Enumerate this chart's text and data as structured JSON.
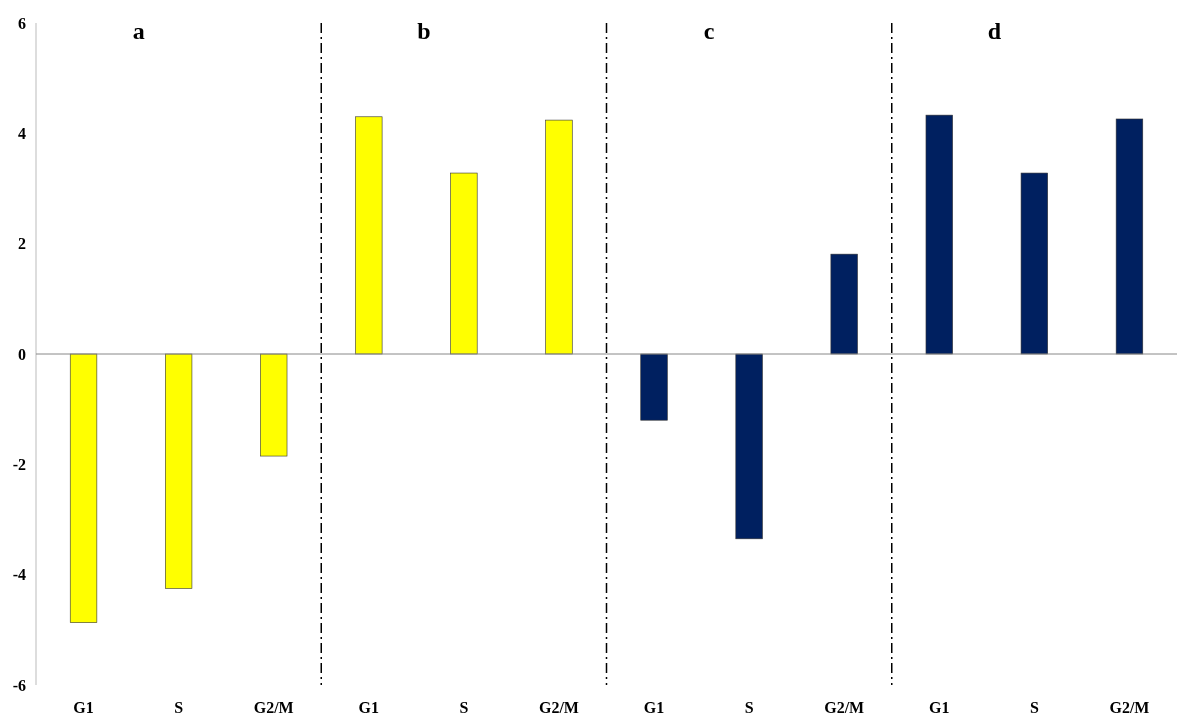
{
  "chart_data": [
    {
      "type": "bar",
      "categories": [
        "G1",
        "S",
        "G2/M"
      ],
      "values": [
        -4.87,
        -4.25,
        -1.85
      ],
      "color": "#ffff00",
      "ylim": [
        -6,
        6
      ],
      "yticks": [
        -6,
        -4,
        -2,
        0,
        2,
        4,
        6
      ],
      "annotations": [
        "a"
      ]
    },
    {
      "type": "bar",
      "categories": [
        "G1",
        "S",
        "G2/M"
      ],
      "values": [
        4.3,
        3.28,
        4.24
      ],
      "color": "#ffff00",
      "ylim": [
        -6,
        6
      ],
      "annotations": [
        "b"
      ],
      "tick_labels": "x"
    },
    {
      "type": "bar",
      "categories": [
        "G1",
        "S",
        "G2/M"
      ],
      "values": [
        -1.2,
        -3.35,
        1.81
      ],
      "color": "#002060",
      "ylim": [
        -6,
        6
      ],
      "annotations": [
        "c"
      ],
      "tick_labels": "x"
    },
    {
      "type": "bar",
      "categories": [
        "G1",
        "S",
        "G2/M"
      ],
      "values": [
        4.33,
        3.28,
        4.26
      ],
      "color": "#002060",
      "ylim": [
        -6,
        6
      ],
      "annotations": [
        "d"
      ],
      "tick_labels": "x"
    }
  ]
}
